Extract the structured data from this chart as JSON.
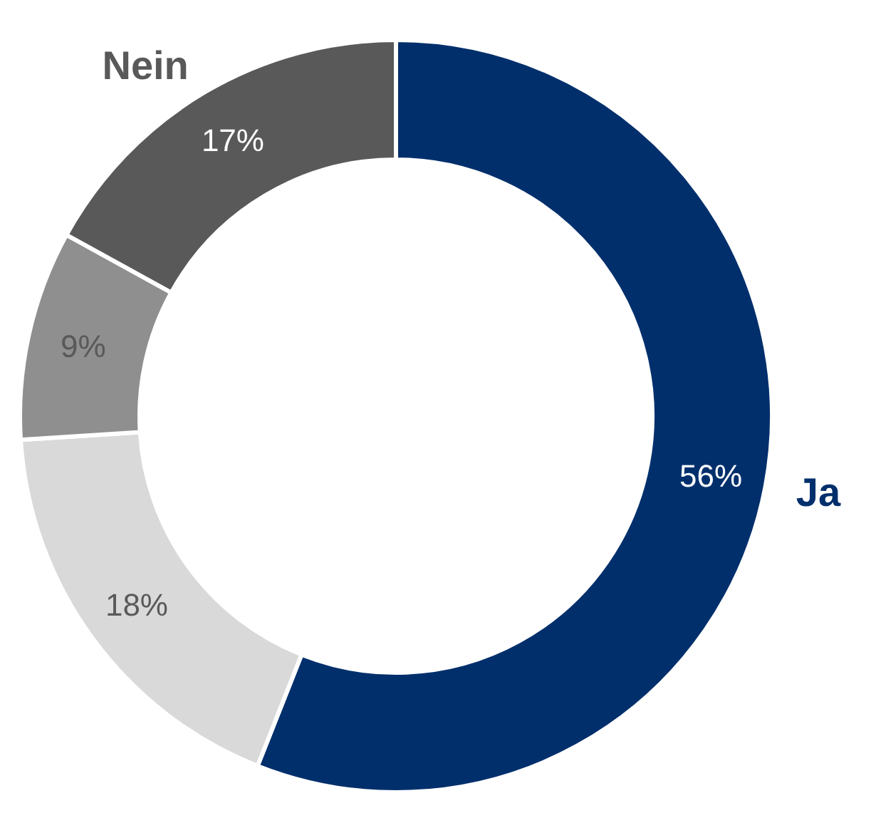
{
  "chart_data": {
    "type": "donut",
    "categories": [
      "Ja",
      null,
      null,
      "Nein"
    ],
    "values": [
      56,
      18,
      9,
      17
    ],
    "colors": [
      "#002f6c",
      "#d9d9d9",
      "#8f8f8f",
      "#595959"
    ],
    "value_labels": [
      "56%",
      "18%",
      "9%",
      "17%"
    ]
  }
}
